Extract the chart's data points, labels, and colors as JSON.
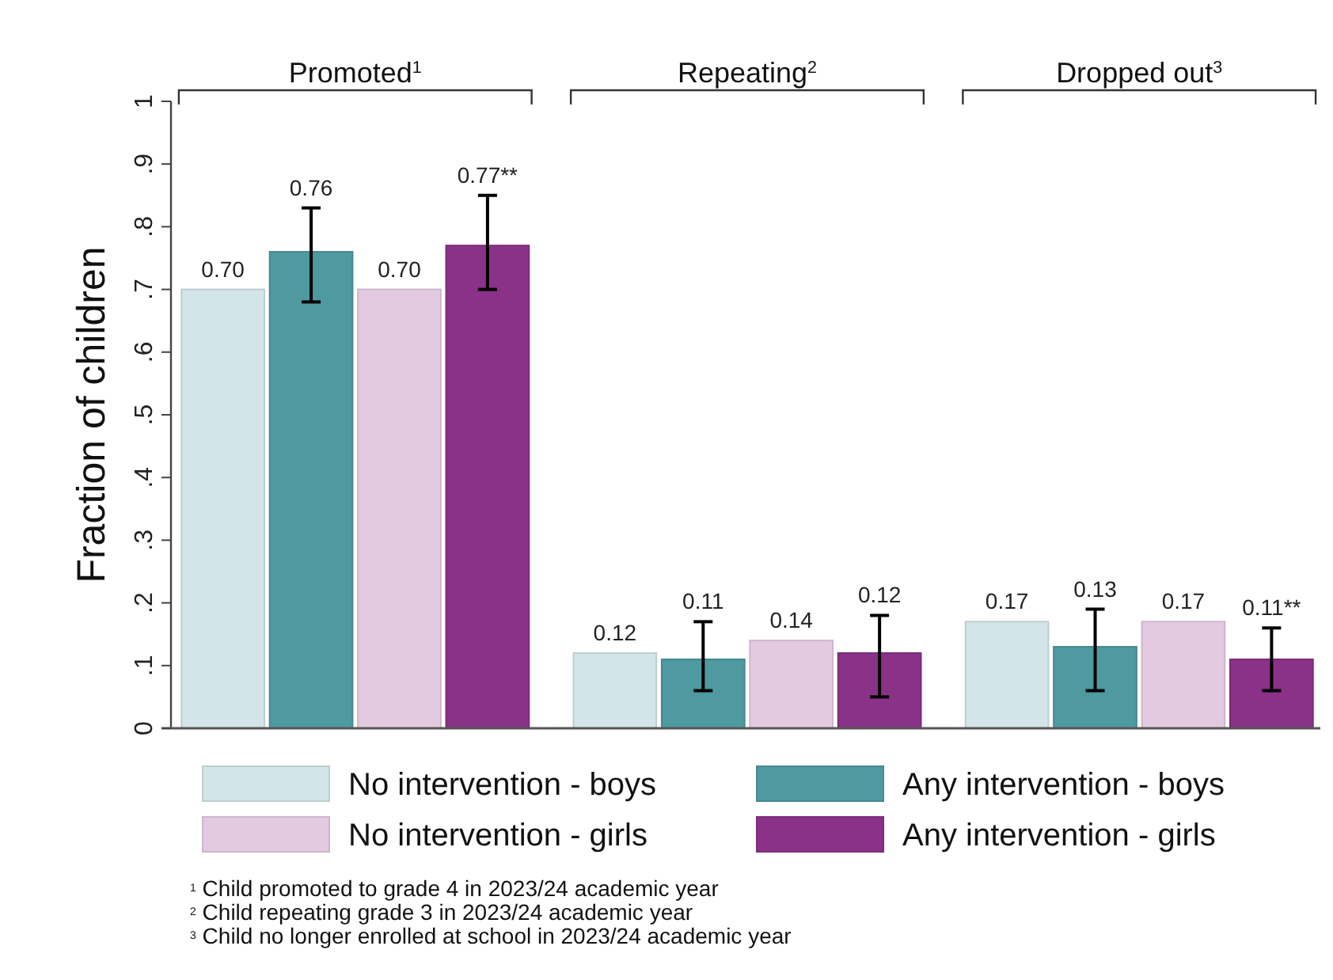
{
  "chart_data": {
    "type": "bar",
    "ylabel": "Fraction of children",
    "categories": [
      "Promoted$^{1}$",
      "Repeating$^{2}$",
      "Dropped out$^{3}$"
    ],
    "ylim": [
      0,
      1
    ],
    "yticks": [
      0,
      {
        "value": 0.1,
        "label": ".1"
      },
      {
        "value": 0.2,
        "label": ".2"
      },
      {
        "value": 0.3,
        "label": ".3"
      },
      {
        "value": 0.4,
        "label": ".4"
      },
      {
        "value": 0.5,
        "label": ".5"
      },
      {
        "value": 0.6,
        "label": ".6"
      },
      {
        "value": 0.7,
        "label": ".7"
      },
      {
        "value": 0.8,
        "label": ".8"
      },
      {
        "value": 0.9,
        "label": ".9"
      },
      1
    ],
    "grid": false,
    "legend": "bottom",
    "series": [
      {
        "name": "No intervention - boys",
        "color": "#d3e5e8",
        "values": [
          0.7,
          0.12,
          0.17
        ],
        "value_labels": [
          "0.70",
          "0.12",
          "0.17"
        ]
      },
      {
        "name": "Any intervention - boys",
        "color": "#4f99a1",
        "values": [
          0.76,
          0.11,
          0.13
        ],
        "value_labels": [
          "0.76",
          "0.11",
          "0.13"
        ],
        "errors": [
          [
            0.68,
            0.83
          ],
          [
            0.06,
            0.17
          ],
          [
            0.06,
            0.19
          ]
        ]
      },
      {
        "name": "No intervention - girls",
        "color": "#e3cae1",
        "values": [
          0.7,
          0.14,
          0.17
        ],
        "value_labels": [
          "0.70",
          "0.14",
          "0.17"
        ]
      },
      {
        "name": "Any intervention - girls",
        "color": "#8a3287",
        "values": [
          0.77,
          0.12,
          0.11
        ],
        "value_labels": [
          "0.77**",
          "0.12",
          "0.11**"
        ],
        "errors": [
          [
            0.7,
            0.85
          ],
          [
            0.05,
            0.18
          ],
          [
            0.06,
            0.16
          ]
        ]
      }
    ],
    "annotations": [
      "$^{1}$ Child promoted to grade 4 in 2023/24 academic year",
      "$^{2}$ Child repeating grade 3 in 2023/24 academic year",
      "$^{3}$ Child no longer enrolled at school in 2023/24 academic year"
    ]
  }
}
